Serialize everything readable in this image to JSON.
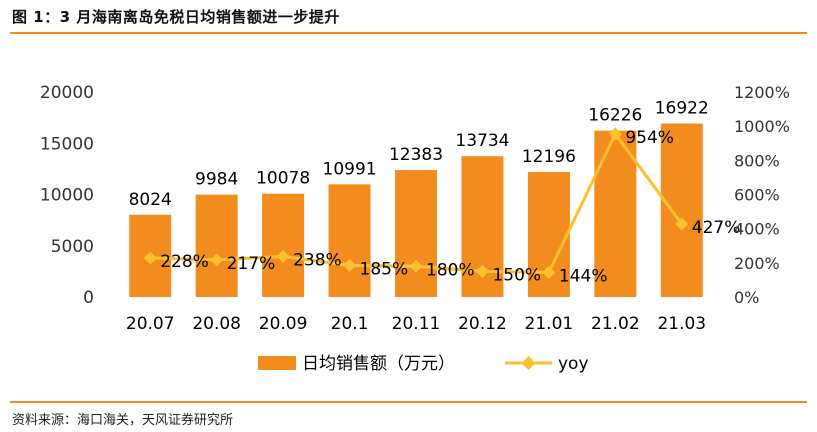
{
  "header": {
    "title": "图 1：3 月海南离岛免税日均销售额进一步提升"
  },
  "footer": {
    "source": "资料来源：海口海关，天风证券研究所"
  },
  "colors": {
    "bar": "#F28C1E",
    "line": "#FBC02D",
    "rule": "#F28C1E"
  },
  "chart_data": {
    "type": "bar",
    "categories": [
      "20.07",
      "20.08",
      "20.09",
      "20.1",
      "20.11",
      "20.12",
      "21.01",
      "21.02",
      "21.03"
    ],
    "series": [
      {
        "name": "日均销售额（万元）",
        "type": "bar",
        "axis": "left",
        "values": [
          8024,
          9984,
          10078,
          10991,
          12383,
          13734,
          12196,
          16226,
          16922
        ],
        "labels": [
          "8024",
          "9984",
          "10078",
          "10991",
          "12383",
          "13734",
          "12196",
          "16226",
          "16922"
        ]
      },
      {
        "name": "yoy",
        "type": "line",
        "axis": "right",
        "values": [
          228,
          217,
          238,
          185,
          180,
          150,
          144,
          954,
          427
        ],
        "labels": [
          "228%",
          "217%",
          "238%",
          "185%",
          "180%",
          "150%",
          "144%",
          "954%",
          "427%"
        ]
      }
    ],
    "y_left": {
      "lim": [
        0,
        20000
      ],
      "ticks": [
        "0",
        "5000",
        "10000",
        "15000",
        "20000"
      ]
    },
    "y_right": {
      "lim": [
        0,
        1200
      ],
      "ticks": [
        "0%",
        "200%",
        "400%",
        "600%",
        "800%",
        "1000%",
        "1200%"
      ]
    },
    "grid": false,
    "legend": "bottom"
  }
}
